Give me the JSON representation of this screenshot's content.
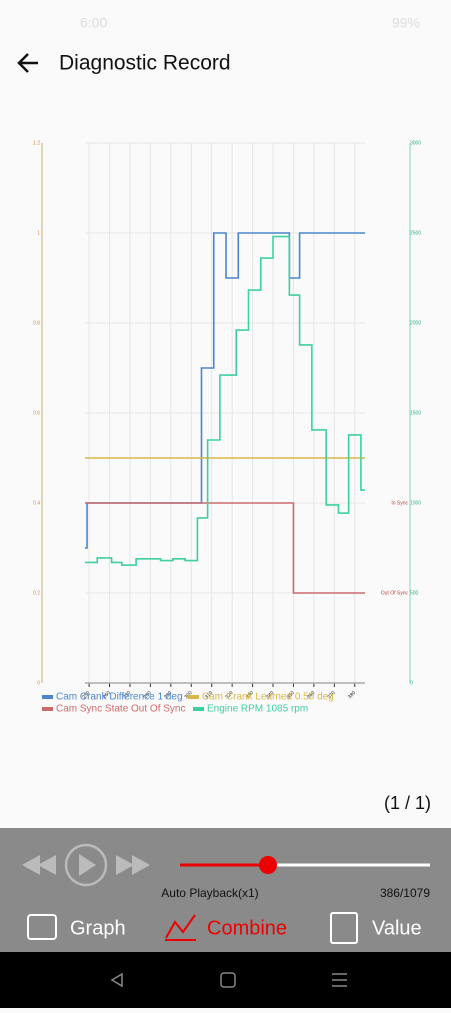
{
  "status_bar": {
    "time": "6:00",
    "battery": "99%"
  },
  "header": {
    "title": "Diagnostic Record"
  },
  "chart_data": {
    "type": "line",
    "xlim": [
      248,
      385
    ],
    "xticks": [
      250,
      260,
      270,
      280,
      290,
      300,
      310,
      320,
      330,
      340,
      350,
      360,
      370,
      380
    ],
    "ylim": [
      0,
      1.2
    ],
    "yticks": [
      0,
      0.2,
      0.4,
      0.6,
      0.8,
      1,
      1.2
    ],
    "y2lim": [
      0,
      3000
    ],
    "y2ticks": [
      0,
      500,
      1000,
      1500,
      2000,
      2500,
      3000
    ],
    "grid": true,
    "annotations": [
      {
        "text": "In Sync",
        "y": 0.4
      },
      {
        "text": "Out Of Sync",
        "y": 0.2
      }
    ],
    "series": [
      {
        "name": "Cam Crank Difference 1 deg",
        "color": "#4a86d0",
        "x": [
          248,
          249,
          305,
          311,
          317,
          323,
          348,
          353
        ],
        "values": [
          0.3,
          0.4,
          0.7,
          1,
          0.9,
          1,
          0.9,
          1
        ]
      },
      {
        "name": "Cam Crank Learned 0.50 deg",
        "color": "#d9b84a",
        "x": [
          248
        ],
        "values": [
          0.5
        ]
      },
      {
        "name": "Cam Sync State Out Of Sync",
        "color": "#cc6a6a",
        "x": [
          248,
          350
        ],
        "values": [
          0.4,
          0.2
        ]
      },
      {
        "name": "Engine RPM 1085 rpm",
        "color": "#3fcf9f",
        "axis": "y2",
        "x": [
          248,
          254,
          261,
          266,
          273,
          285,
          291,
          297,
          303,
          308,
          314,
          322,
          328,
          334,
          340,
          348,
          353,
          359,
          366,
          372,
          377,
          383
        ],
        "values": [
          670,
          695,
          670,
          655,
          690,
          680,
          690,
          680,
          917,
          1350,
          1711,
          1961,
          2183,
          2361,
          2480,
          2155,
          1878,
          1406,
          989,
          944,
          1378,
          1072
        ]
      }
    ]
  },
  "page_indicator": "(1 / 1)",
  "playback": {
    "mode": "Auto Playback(x1)",
    "position": "386/1079"
  },
  "tabs": [
    "Graph",
    "Combine",
    "Value"
  ]
}
